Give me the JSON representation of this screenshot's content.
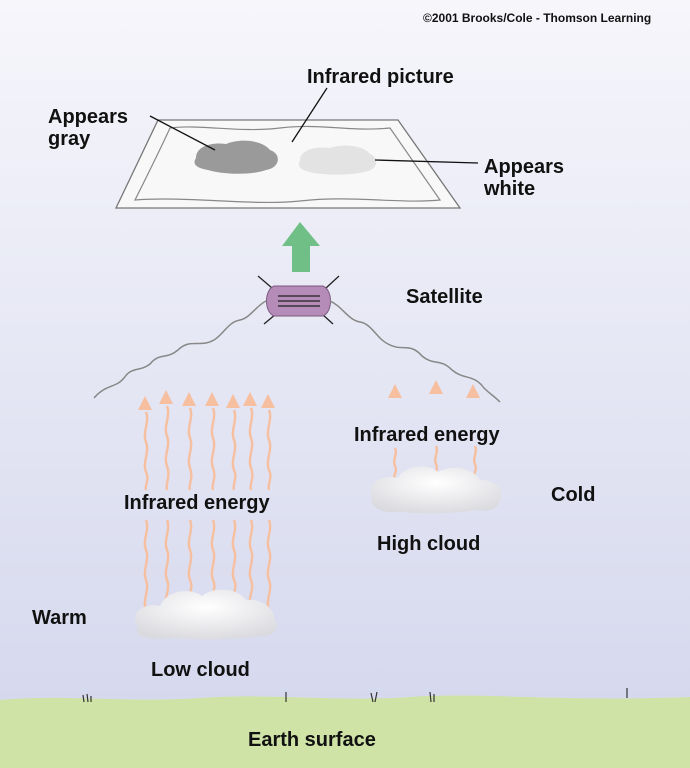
{
  "copyright": "©2001 Brooks/Cole - Thomson Learning",
  "labels": {
    "infrared_picture": "Infrared picture",
    "appears_gray_line1": "Appears",
    "appears_gray_line2": "gray",
    "appears_white_line1": "Appears",
    "appears_white_line2": "white",
    "satellite": "Satellite",
    "infrared_energy_high": "Infrared energy",
    "infrared_energy_low": "Infrared energy",
    "cold": "Cold",
    "warm": "Warm",
    "high_cloud": "High cloud",
    "low_cloud": "Low cloud",
    "earth_surface": "Earth surface"
  },
  "colors": {
    "sky_top": "#f6f6fb",
    "sky_bottom": "#d6d9ee",
    "ground": "#cfe3a6",
    "satellite": "#b58bb8",
    "up_arrow": "#6fbf86",
    "energy_arrow": "#f6bf9f",
    "gray_cloud_image": "#9a9a9a",
    "white_cloud_image": "#e3e3e3"
  }
}
